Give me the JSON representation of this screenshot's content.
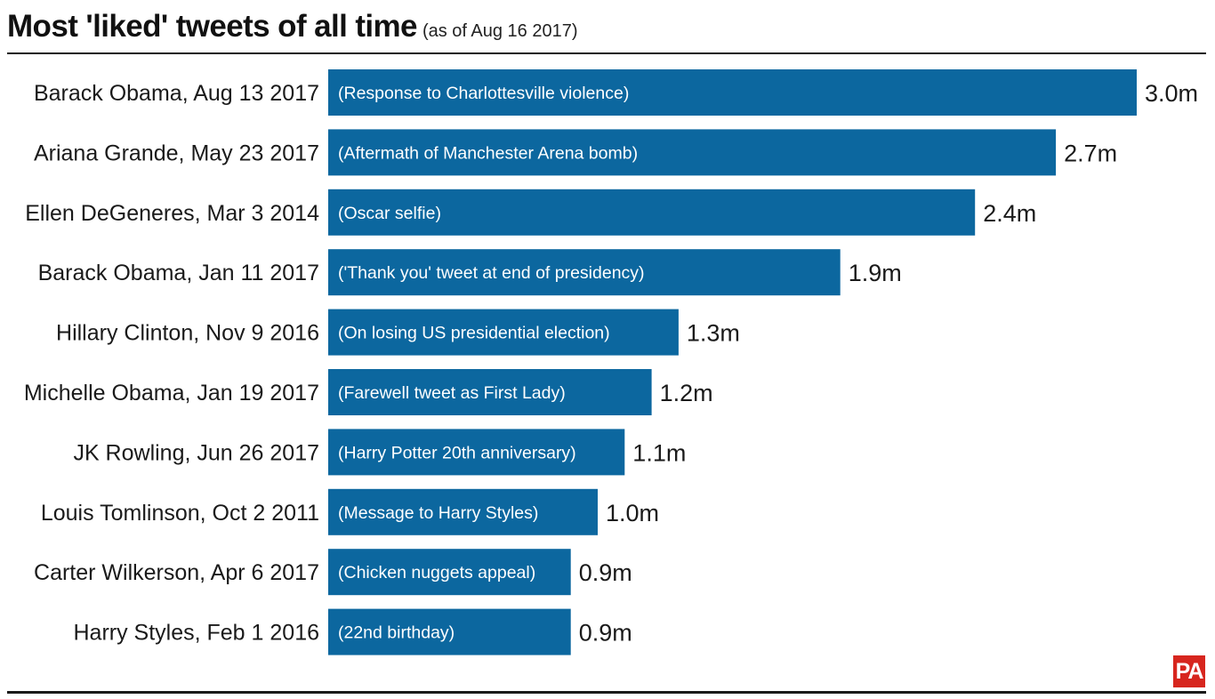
{
  "header": {
    "title": "Most 'liked' tweets of all time",
    "subtitle": "(as of Aug 16 2017)"
  },
  "logo": {
    "text": "PA",
    "color": "#d7261e"
  },
  "colors": {
    "bar": "#0c679f",
    "text": "#1a1a1a"
  },
  "chart_data": {
    "type": "bar",
    "orientation": "horizontal",
    "title": "Most 'liked' tweets of all time",
    "subtitle": "(as of Aug 16 2017)",
    "unit": "m",
    "categories": [
      "Barack Obama, Aug 13 2017",
      "Ariana Grande, May 23 2017",
      "Ellen DeGeneres, Mar 3 2014",
      "Barack Obama, Jan 11 2017",
      "Hillary Clinton, Nov 9 2016",
      "Michelle Obama, Jan 19 2017",
      "JK Rowling, Jun 26 2017",
      "Louis Tomlinson, Oct 2 2011",
      "Carter Wilkerson, Apr 6 2017",
      "Harry Styles, Feb 1 2016"
    ],
    "descriptions": [
      "(Response to Charlottesville violence)",
      "(Aftermath of Manchester Arena bomb)",
      "(Oscar selfie)",
      "('Thank you' tweet at end of presidency)",
      "(On losing US presidential election)",
      "(Farewell tweet as First Lady)",
      "(Harry Potter 20th anniversary)",
      "(Message to Harry Styles)",
      "(Chicken nuggets appeal)",
      "(22nd birthday)"
    ],
    "values": [
      3.0,
      2.7,
      2.4,
      1.9,
      1.3,
      1.2,
      1.1,
      1.0,
      0.9,
      0.9
    ],
    "value_labels": [
      "3.0m",
      "2.7m",
      "2.4m",
      "1.9m",
      "1.3m",
      "1.2m",
      "1.1m",
      "1.0m",
      "0.9m",
      "0.9m"
    ],
    "xlim": [
      0,
      3.0
    ],
    "grid": false,
    "legend": "none"
  }
}
